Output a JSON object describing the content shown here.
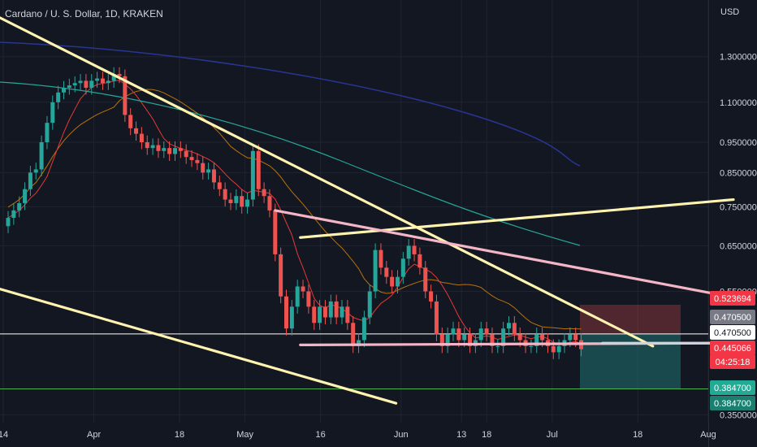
{
  "header": {
    "title": "Cardano / U. S. Dollar, 1D, KRAKEN",
    "currency": "USD"
  },
  "chart_data": {
    "type": "candlestick",
    "y_scale": "log",
    "ylim": [
      0.34,
      1.6
    ],
    "y_ticks": [
      "1.300000",
      "1.100000",
      "0.950000",
      "0.850000",
      "0.750000",
      "0.650000",
      "0.550000",
      "0.350000"
    ],
    "x_ticks": [
      "14",
      "Apr",
      "18",
      "May",
      "16",
      "Jun",
      "13",
      "18",
      "Jul",
      "18",
      "Aug"
    ],
    "price_labels": [
      {
        "text": "0.523694",
        "kind": "stop"
      },
      {
        "text": "0.470500",
        "kind": "entry-grey"
      },
      {
        "text": "0.470500",
        "kind": "entry-white"
      },
      {
        "text": "0.445066",
        "kind": "last"
      },
      {
        "text": "04:25:18",
        "kind": "countdown"
      },
      {
        "text": "0.384700",
        "kind": "target"
      },
      {
        "text": "0.384700",
        "kind": "target-box"
      }
    ],
    "candle_closes": [
      0.72,
      0.74,
      0.76,
      0.8,
      0.85,
      0.86,
      0.95,
      1.02,
      1.1,
      1.14,
      1.16,
      1.17,
      1.18,
      1.19,
      1.16,
      1.19,
      1.2,
      1.18,
      1.19,
      1.22,
      1.21,
      1.05,
      1.0,
      0.98,
      0.95,
      0.93,
      0.94,
      0.92,
      0.93,
      0.91,
      0.93,
      0.92,
      0.9,
      0.89,
      0.88,
      0.85,
      0.86,
      0.82,
      0.8,
      0.77,
      0.76,
      0.78,
      0.75,
      0.77,
      0.92,
      0.8,
      0.78,
      0.74,
      0.63,
      0.54,
      0.48,
      0.52,
      0.56,
      0.55,
      0.52,
      0.49,
      0.52,
      0.5,
      0.53,
      0.5,
      0.52,
      0.49,
      0.45,
      0.46,
      0.5,
      0.55,
      0.64,
      0.6,
      0.58,
      0.56,
      0.58,
      0.62,
      0.65,
      0.63,
      0.6,
      0.55,
      0.53,
      0.47,
      0.45,
      0.47,
      0.48,
      0.46,
      0.47,
      0.45,
      0.46,
      0.48,
      0.47,
      0.45,
      0.45,
      0.48,
      0.49,
      0.47,
      0.46,
      0.45,
      0.45,
      0.47,
      0.46,
      0.45,
      0.44,
      0.45,
      0.46,
      0.47,
      0.46,
      0.445
    ],
    "trendlines": [
      {
        "name": "upper-descending",
        "color": "#fff3b0",
        "from": [
          "2022-03-05",
          1.62
        ],
        "to": [
          "2022-07-21",
          0.45
        ]
      },
      {
        "name": "lower-descending",
        "color": "#fff3b0",
        "from": [
          "2022-03-05",
          0.58
        ],
        "to": [
          "2022-05-31",
          0.365
        ]
      },
      {
        "name": "ascending-resistance",
        "color": "#fff3b0",
        "from": [
          "2022-05-12",
          0.67
        ],
        "to": [
          "2022-08-06",
          0.77
        ]
      },
      {
        "name": "pink-descending",
        "color": "#f4b6c6",
        "from": [
          "2022-05-07",
          0.74
        ],
        "to": [
          "2022-08-05",
          0.54
        ]
      },
      {
        "name": "pink-support",
        "color": "#f4b6c6",
        "from": [
          "2022-05-12",
          0.452
        ],
        "to": [
          "2022-08-05",
          0.455
        ]
      },
      {
        "name": "support-grey",
        "color": "#d1d4dc",
        "from": [
          "2022-07-11",
          0.455
        ],
        "to": [
          "2022-08-05",
          0.455
        ]
      }
    ],
    "moving_averages": [
      {
        "name": "navy-ma",
        "color": "#283593"
      },
      {
        "name": "teal-ma",
        "color": "#26a69a"
      },
      {
        "name": "orange-ma",
        "color": "#ff9800"
      },
      {
        "name": "red-ma",
        "color": "#e53935"
      }
    ],
    "horizontal_levels": [
      {
        "name": "entry-line",
        "value": 0.4705,
        "color": "#ffffff"
      },
      {
        "name": "target-line",
        "value": 0.3847,
        "color": "#4caf50"
      }
    ],
    "position": {
      "stop": 0.523694,
      "entry": 0.4705,
      "target": 0.3847
    }
  },
  "colors": {
    "up": "#26a69a",
    "down": "#ef5350",
    "background": "#131722",
    "grid": "#1f2430",
    "axis_text": "#d1d4dc"
  }
}
